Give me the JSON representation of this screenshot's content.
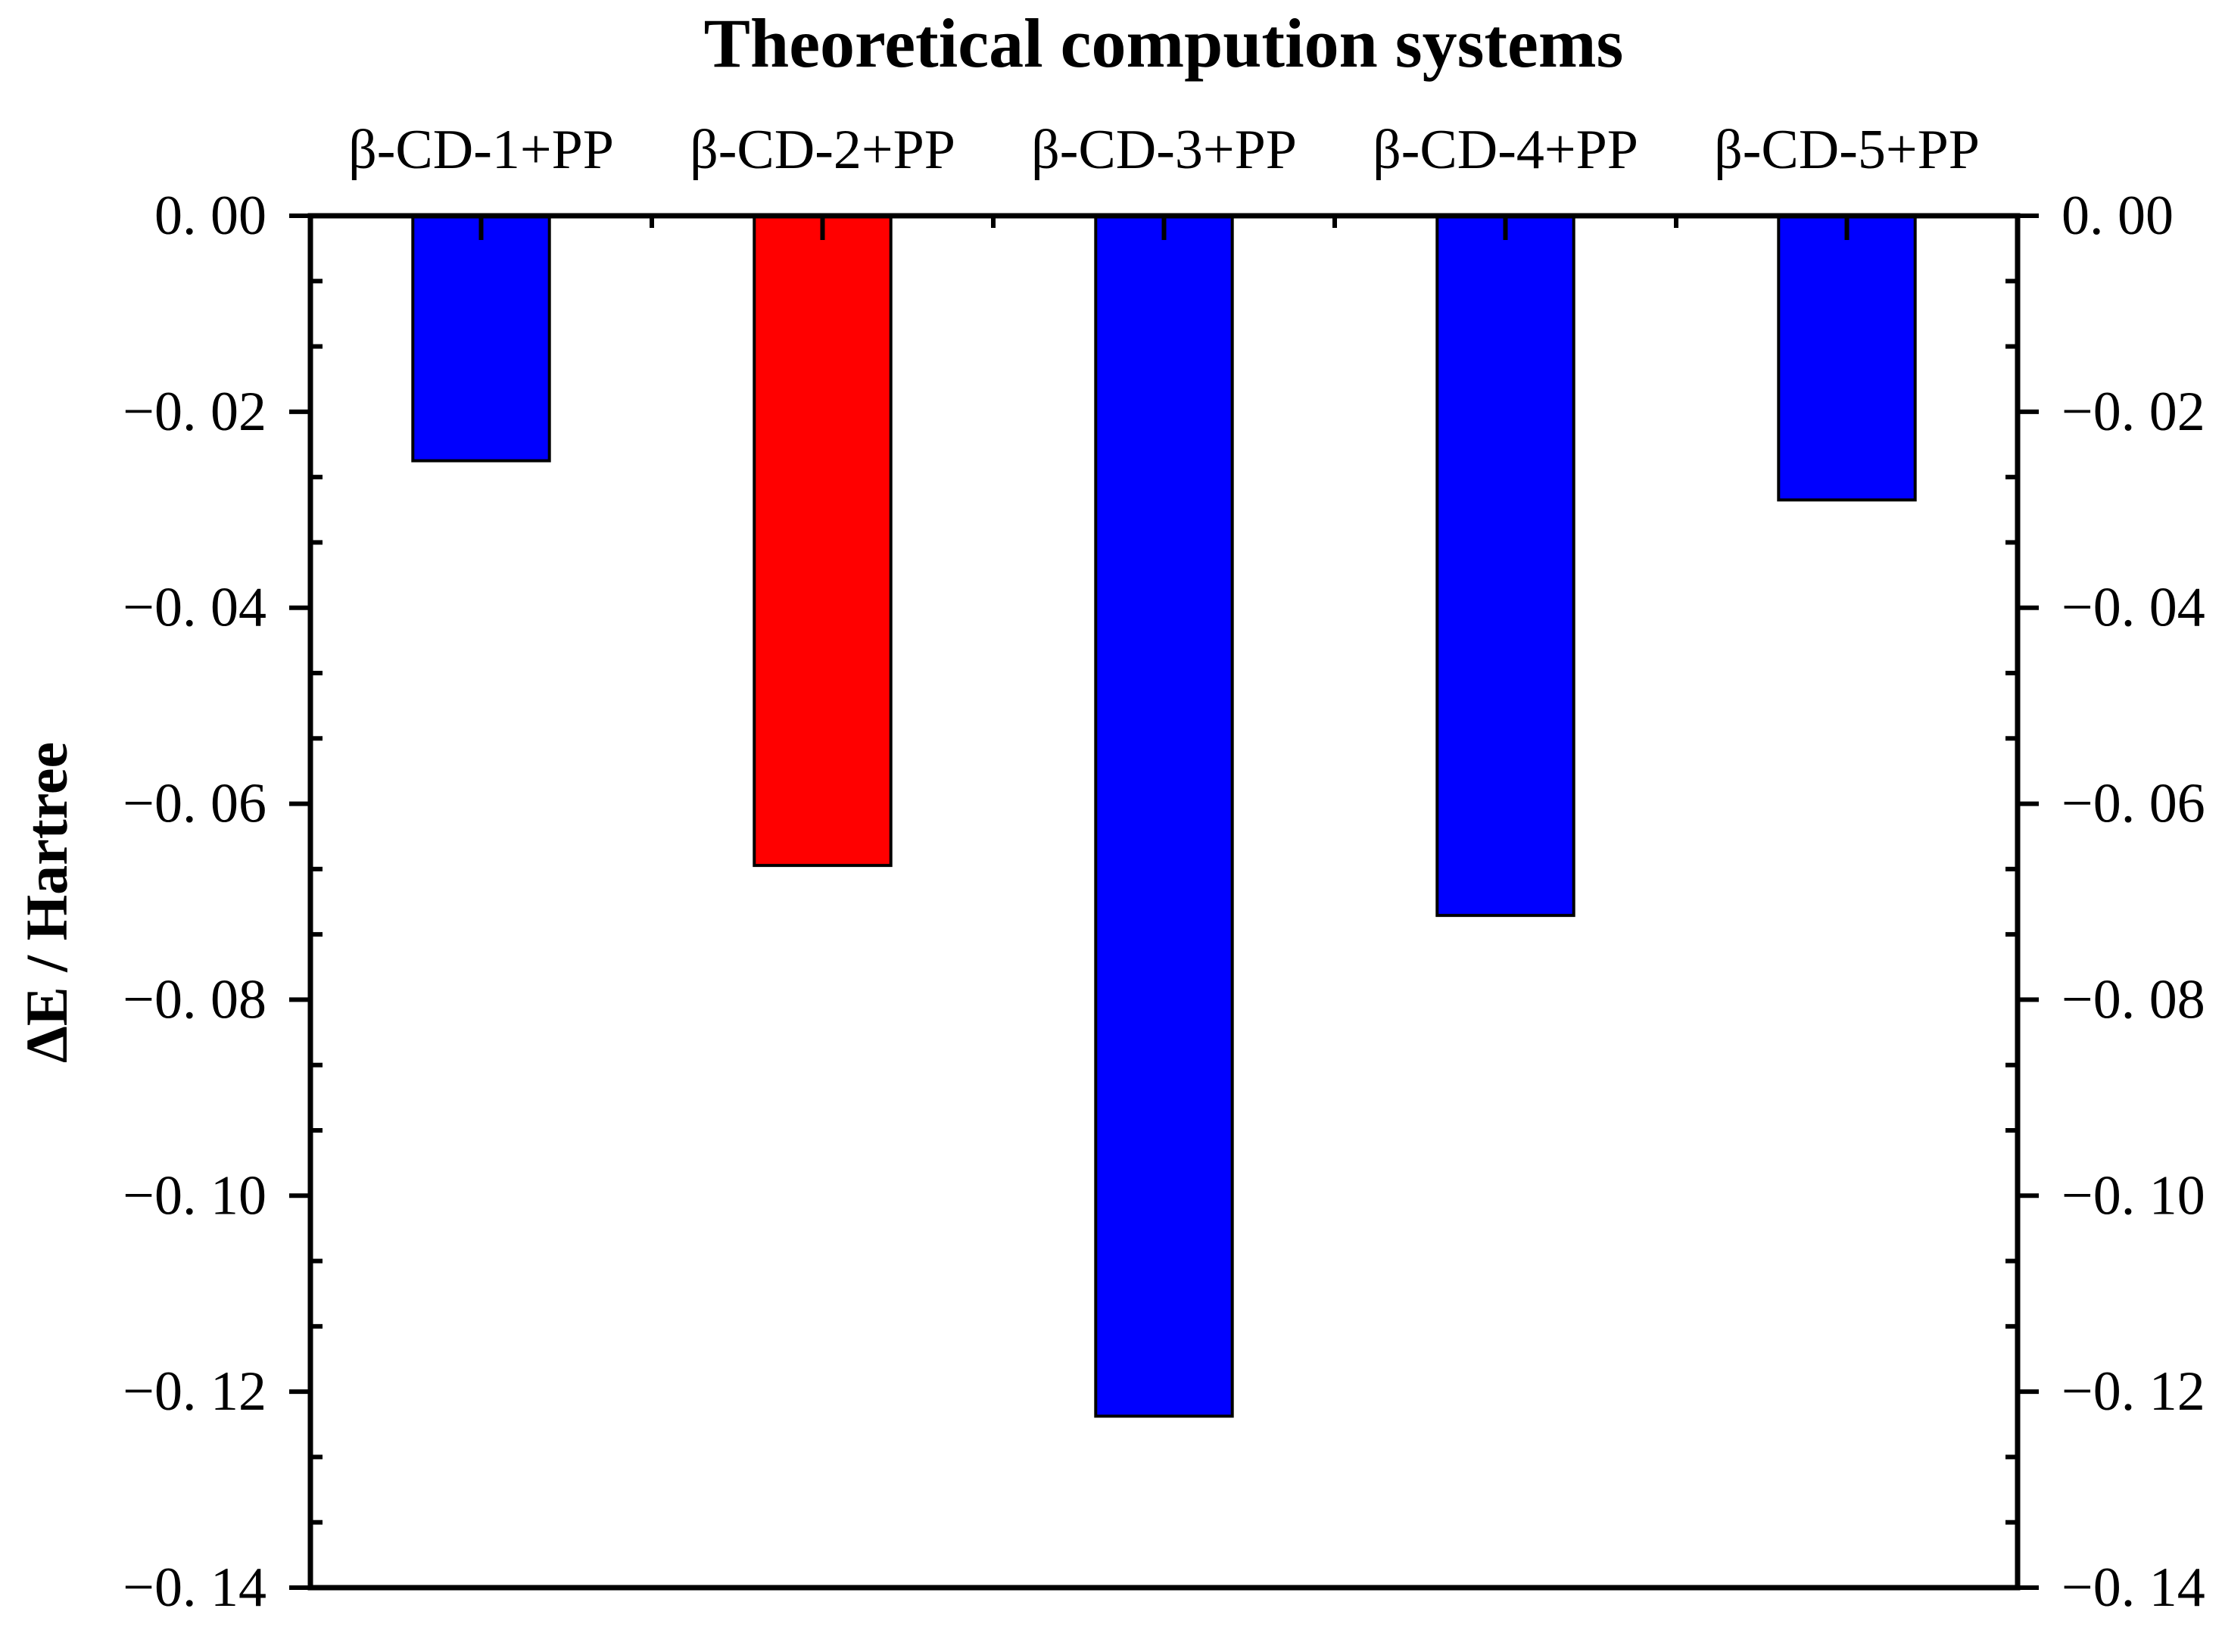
{
  "chart_data": {
    "type": "bar",
    "title": "Theoretical compution systems",
    "xlabel": "",
    "ylabel": "ΔE / Hartree",
    "categories": [
      "β-CD-1+PP",
      "β-CD-2+PP",
      "β-CD-3+PP",
      "β-CD-4+PP",
      "β-CD-5+PP"
    ],
    "values": [
      -0.025,
      -0.0663,
      -0.1225,
      -0.0714,
      -0.029
    ],
    "bar_colors": [
      "#0000ff",
      "#ff0000",
      "#0000ff",
      "#0000ff",
      "#0000ff"
    ],
    "ylim": [
      -0.14,
      0.0
    ],
    "yticks": [
      0.0,
      -0.02,
      -0.04,
      -0.06,
      -0.08,
      -0.1,
      -0.12,
      -0.14
    ],
    "ytick_labels": [
      "0. 00",
      "−0. 02",
      "−0. 04",
      "−0. 06",
      "−0. 08",
      "−0. 10",
      "−0. 12",
      "−0. 14"
    ],
    "x_axis_position": "top",
    "mirror_y_axis": "right",
    "grid": false,
    "legend": "none"
  }
}
